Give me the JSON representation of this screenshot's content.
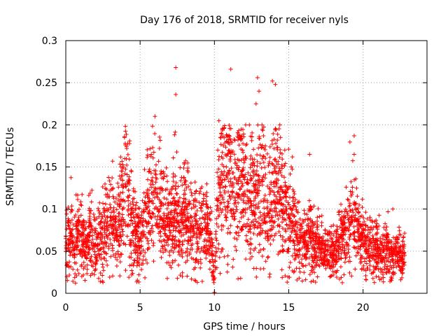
{
  "chart_data": {
    "type": "scatter",
    "title": "Day 176 of 2018, SRMTID for receiver nyls",
    "xlabel": "GPS time / hours",
    "ylabel": "SRMTID / TECUs",
    "xlim": [
      0,
      24.3
    ],
    "ylim": [
      0,
      0.3
    ],
    "x_ticks": [
      0,
      5,
      10,
      15,
      20
    ],
    "x_tick_labels": [
      "0",
      "5",
      "10",
      "15",
      "20"
    ],
    "y_ticks": [
      0,
      0.05,
      0.1,
      0.15,
      0.2,
      0.25,
      0.3
    ],
    "y_tick_labels": [
      "0",
      "0.05",
      "0.1",
      "0.15",
      "0.2",
      "0.25",
      "0.3"
    ],
    "grid": true,
    "marker": "+",
    "series": [
      {
        "name": "SRMTID",
        "color": "#ff0000",
        "x": [
          0.0,
          0.2,
          0.4,
          0.6,
          0.8,
          1.0,
          1.2,
          1.4,
          1.6,
          1.8,
          2.0,
          2.2,
          2.4,
          2.6,
          2.8,
          3.0,
          3.2,
          3.4,
          3.6,
          3.8,
          4.0,
          4.2,
          4.4,
          4.6,
          4.8,
          5.0,
          5.2,
          5.4,
          5.6,
          5.8,
          6.0,
          6.2,
          6.4,
          6.6,
          6.8,
          7.0,
          7.2,
          7.4,
          7.6,
          7.8,
          8.0,
          8.2,
          8.4,
          8.6,
          8.8,
          9.0,
          9.2,
          9.4,
          9.6,
          9.8,
          10.0,
          10.2,
          10.4,
          10.6,
          10.8,
          11.0,
          11.2,
          11.4,
          11.6,
          11.8,
          12.0,
          12.2,
          12.4,
          12.6,
          12.8,
          13.0,
          13.2,
          13.4,
          13.6,
          13.8,
          14.0,
          14.2,
          14.4,
          14.6,
          14.8,
          15.0,
          15.2,
          15.4,
          15.6,
          15.8,
          16.0,
          16.2,
          16.4,
          16.6,
          16.8,
          17.0,
          17.2,
          17.4,
          17.6,
          17.8,
          18.0,
          18.2,
          18.4,
          18.6,
          18.8,
          19.0,
          19.2,
          19.4,
          19.6,
          19.8,
          20.0,
          20.2,
          20.4,
          20.6,
          20.8,
          21.0,
          21.2,
          21.4,
          21.6,
          21.8,
          22.0,
          22.2,
          22.4,
          22.6,
          22.8
        ],
        "y": [
          0.065,
          0.058,
          0.07,
          0.052,
          0.075,
          0.068,
          0.06,
          0.055,
          0.072,
          0.064,
          0.058,
          0.07,
          0.062,
          0.075,
          0.085,
          0.09,
          0.08,
          0.072,
          0.095,
          0.1,
          0.13,
          0.11,
          0.09,
          0.075,
          0.07,
          0.065,
          0.08,
          0.085,
          0.095,
          0.11,
          0.12,
          0.1,
          0.09,
          0.085,
          0.08,
          0.075,
          0.09,
          0.1,
          0.085,
          0.095,
          0.1,
          0.09,
          0.075,
          0.08,
          0.085,
          0.07,
          0.075,
          0.08,
          0.07,
          0.065,
          0.0,
          0.11,
          0.13,
          0.14,
          0.15,
          0.145,
          0.12,
          0.11,
          0.13,
          0.14,
          0.115,
          0.1,
          0.11,
          0.12,
          0.105,
          0.13,
          0.135,
          0.11,
          0.095,
          0.1,
          0.12,
          0.13,
          0.11,
          0.095,
          0.1,
          0.09,
          0.085,
          0.075,
          0.07,
          0.065,
          0.06,
          0.055,
          0.07,
          0.065,
          0.05,
          0.055,
          0.06,
          0.045,
          0.05,
          0.055,
          0.045,
          0.05,
          0.06,
          0.065,
          0.07,
          0.075,
          0.085,
          0.09,
          0.08,
          0.07,
          0.06,
          0.055,
          0.05,
          0.06,
          0.055,
          0.05,
          0.045,
          0.05,
          0.055,
          0.045,
          0.04,
          0.045,
          0.05,
          0.04,
          0.045
        ],
        "outliers": [
          {
            "x": 7.4,
            "y": 0.268
          },
          {
            "x": 7.4,
            "y": 0.236
          },
          {
            "x": 11.1,
            "y": 0.266
          },
          {
            "x": 12.9,
            "y": 0.256
          },
          {
            "x": 13.9,
            "y": 0.252
          },
          {
            "x": 13.0,
            "y": 0.24
          },
          {
            "x": 14.1,
            "y": 0.248
          },
          {
            "x": 10.3,
            "y": 0.205
          },
          {
            "x": 12.8,
            "y": 0.225
          },
          {
            "x": 13.2,
            "y": 0.2
          },
          {
            "x": 14.4,
            "y": 0.2
          },
          {
            "x": 6.0,
            "y": 0.21
          },
          {
            "x": 4.3,
            "y": 0.181
          },
          {
            "x": 19.4,
            "y": 0.187
          },
          {
            "x": 19.4,
            "y": 0.165
          },
          {
            "x": 16.4,
            "y": 0.165
          },
          {
            "x": 12.1,
            "y": 0.2
          },
          {
            "x": 10.0,
            "y": 0.001
          },
          {
            "x": 15.7,
            "y": 0.018
          },
          {
            "x": 22.0,
            "y": 0.1
          }
        ]
      }
    ]
  }
}
